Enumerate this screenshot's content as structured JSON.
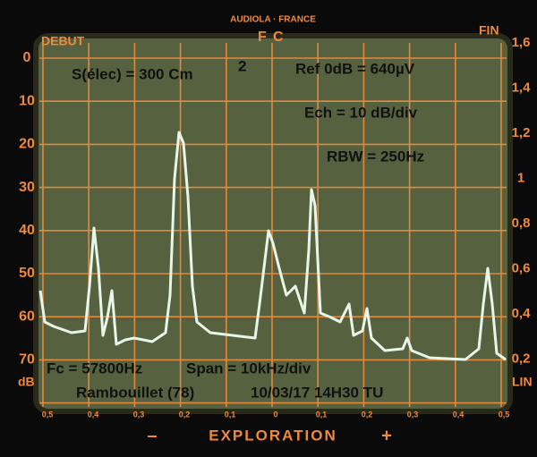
{
  "header": {
    "brand": "AUDIOLA · FRANCE",
    "start": "DEBUT",
    "center_left": "F",
    "center_right": "C",
    "end": "FIN"
  },
  "left_scale": {
    "labels": [
      "0",
      "10",
      "20",
      "30",
      "40",
      "50",
      "60",
      "70"
    ],
    "unit": "dB"
  },
  "right_scale": {
    "labels": [
      "1,6",
      "1,4",
      "1,2",
      "1",
      "0,8",
      "0,6",
      "0,4",
      "0,2"
    ],
    "unit": "LIN"
  },
  "bottom_scale": {
    "labels": [
      "0,5",
      "0,4",
      "0,3",
      "0,2",
      "0,1",
      "0",
      "0,1",
      "0,2",
      "0,3",
      "0,4",
      "0,5"
    ]
  },
  "footer": {
    "minus": "–",
    "label": "EXPLORATION",
    "plus": "+"
  },
  "overlay": {
    "surface": "S(élec) = 300 Cm",
    "surface_exponent": "2",
    "reference": "Ref 0dB = 640µV",
    "scale": "Ech = 10 dB/div",
    "rbw": "RBW = 250Hz",
    "center_frequency": "Fc = 57800Hz",
    "span": "Span = 10kHz/div",
    "location": "Rambouillet  (78)",
    "timestamp": "10/03/17  14H30 TU"
  }
}
